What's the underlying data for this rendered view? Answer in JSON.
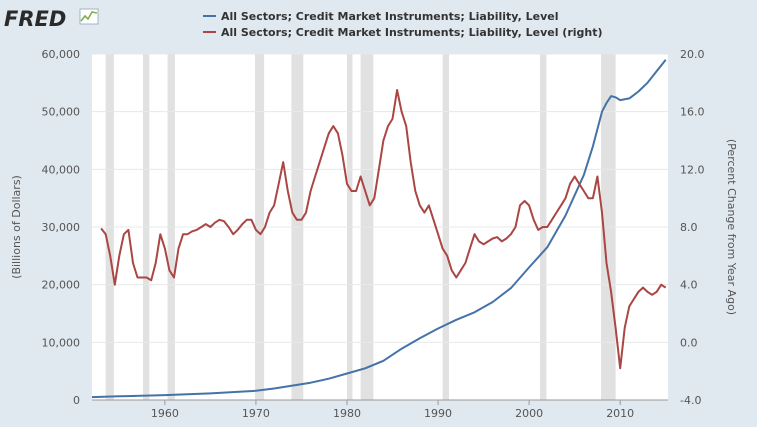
{
  "logo": {
    "text": "FRED"
  },
  "colors": {
    "background": "#e1e9f0",
    "plot_background": "#ffffff",
    "recession": "#e1e1e1",
    "grid": "#e8e8e8",
    "series_left": "#4572a7",
    "series_right": "#aa4643"
  },
  "chart_data": {
    "type": "line",
    "legend_position": "top",
    "grid": true,
    "xlim": [
      1952,
      2015.25
    ],
    "x_ticks": [
      1960,
      1970,
      1980,
      1990,
      2000,
      2010
    ],
    "x_tick_labels": [
      "1960",
      "1970",
      "1980",
      "1990",
      "2000",
      "2010"
    ],
    "y_left": {
      "label": "(Billions of Dollars)",
      "lim": [
        0,
        60000
      ],
      "ticks": [
        0,
        10000,
        20000,
        30000,
        40000,
        50000,
        60000
      ],
      "tick_labels": [
        "0",
        "10,000",
        "20,000",
        "30,000",
        "40,000",
        "50,000",
        "60,000"
      ]
    },
    "y_right": {
      "label": "(Percent Change from Year Ago)",
      "lim": [
        -4,
        20
      ],
      "ticks": [
        -4,
        0,
        4,
        8,
        12,
        16,
        20
      ],
      "tick_labels": [
        "-4.0",
        "0.0",
        "4.0",
        "8.0",
        "12.0",
        "16.0",
        "20.0"
      ]
    },
    "recessions": [
      [
        1953.5,
        1954.4
      ],
      [
        1957.6,
        1958.3
      ],
      [
        1960.3,
        1961.1
      ],
      [
        1969.9,
        1970.9
      ],
      [
        1973.9,
        1975.2
      ],
      [
        1980.0,
        1980.6
      ],
      [
        1981.5,
        1982.9
      ],
      [
        1990.5,
        1991.2
      ],
      [
        2001.2,
        2001.9
      ],
      [
        2007.9,
        2009.5
      ]
    ],
    "series": [
      {
        "name": "All Sectors; Credit Market Instruments; Liability, Level",
        "axis": "left",
        "x": [
          1952.0,
          1955.0,
          1960.0,
          1965.0,
          1970.0,
          1972.0,
          1974.0,
          1976.0,
          1978.0,
          1980.0,
          1982.0,
          1984.0,
          1986.0,
          1988.0,
          1990.0,
          1992.0,
          1994.0,
          1996.0,
          1998.0,
          2000.0,
          2002.0,
          2004.0,
          2006.0,
          2007.0,
          2008.0,
          2008.5,
          2009.0,
          2009.5,
          2010.0,
          2011.0,
          2012.0,
          2013.0,
          2014.0,
          2014.75,
          2015.0
        ],
        "values": [
          500,
          650,
          850,
          1150,
          1600,
          2000,
          2500,
          3000,
          3700,
          4600,
          5500,
          6800,
          8900,
          10700,
          12400,
          13900,
          15200,
          17000,
          19400,
          23000,
          26500,
          32000,
          39000,
          44000,
          50000,
          51500,
          52700,
          52500,
          52000,
          52300,
          53500,
          55000,
          57000,
          58500,
          59000
        ]
      },
      {
        "name": "All Sectors; Credit Market Instruments; Liability, Level (right)",
        "axis": "right",
        "x": [
          1953.0,
          1953.5,
          1954.0,
          1954.5,
          1955.0,
          1955.5,
          1956.0,
          1956.5,
          1957.0,
          1957.5,
          1958.0,
          1958.5,
          1959.0,
          1959.5,
          1960.0,
          1960.5,
          1961.0,
          1961.5,
          1962.0,
          1962.5,
          1963.0,
          1963.5,
          1964.0,
          1964.5,
          1965.0,
          1965.5,
          1966.0,
          1966.5,
          1967.0,
          1967.5,
          1968.0,
          1968.5,
          1969.0,
          1969.5,
          1970.0,
          1970.5,
          1971.0,
          1971.5,
          1972.0,
          1972.5,
          1973.0,
          1973.5,
          1974.0,
          1974.5,
          1975.0,
          1975.5,
          1976.0,
          1976.5,
          1977.0,
          1977.5,
          1978.0,
          1978.5,
          1979.0,
          1979.5,
          1980.0,
          1980.5,
          1981.0,
          1981.5,
          1982.0,
          1982.5,
          1983.0,
          1983.5,
          1984.0,
          1984.5,
          1985.0,
          1985.5,
          1986.0,
          1986.5,
          1987.0,
          1987.5,
          1988.0,
          1988.5,
          1989.0,
          1989.5,
          1990.0,
          1990.5,
          1991.0,
          1991.5,
          1992.0,
          1992.5,
          1993.0,
          1993.5,
          1994.0,
          1994.5,
          1995.0,
          1995.5,
          1996.0,
          1996.5,
          1997.0,
          1997.5,
          1998.0,
          1998.5,
          1999.0,
          1999.5,
          2000.0,
          2000.5,
          2001.0,
          2001.5,
          2002.0,
          2002.5,
          2003.0,
          2003.5,
          2004.0,
          2004.5,
          2005.0,
          2005.5,
          2006.0,
          2006.5,
          2007.0,
          2007.5,
          2008.0,
          2008.5,
          2009.0,
          2009.5,
          2010.0,
          2010.5,
          2011.0,
          2011.5,
          2012.0,
          2012.5,
          2013.0,
          2013.5,
          2014.0,
          2014.5,
          2015.0
        ],
        "values": [
          7.9,
          7.5,
          6.0,
          4.0,
          6.0,
          7.5,
          7.8,
          5.5,
          4.5,
          4.5,
          4.5,
          4.3,
          5.5,
          7.5,
          6.5,
          5.0,
          4.5,
          6.5,
          7.5,
          7.5,
          7.7,
          7.8,
          8.0,
          8.2,
          8.0,
          8.3,
          8.5,
          8.4,
          8.0,
          7.5,
          7.8,
          8.2,
          8.5,
          8.5,
          7.8,
          7.5,
          8.0,
          9.0,
          9.5,
          11.0,
          12.5,
          10.5,
          9.0,
          8.5,
          8.5,
          9.0,
          10.5,
          11.5,
          12.5,
          13.5,
          14.5,
          15.0,
          14.5,
          13.0,
          11.0,
          10.5,
          10.5,
          11.5,
          10.5,
          9.5,
          10.0,
          12.0,
          14.0,
          15.0,
          15.5,
          17.5,
          16.0,
          15.0,
          12.5,
          10.5,
          9.5,
          9.0,
          9.5,
          8.5,
          7.5,
          6.5,
          6.0,
          5.0,
          4.5,
          5.0,
          5.5,
          6.5,
          7.5,
          7.0,
          6.8,
          7.0,
          7.2,
          7.3,
          7.0,
          7.2,
          7.5,
          8.0,
          9.5,
          9.8,
          9.5,
          8.5,
          7.8,
          8.0,
          8.0,
          8.5,
          9.0,
          9.5,
          10.0,
          11.0,
          11.5,
          11.0,
          10.5,
          10.0,
          10.0,
          11.5,
          9.0,
          5.5,
          3.5,
          1.0,
          -1.8,
          1.0,
          2.5,
          3.0,
          3.5,
          3.8,
          3.5,
          3.3,
          3.5,
          4.0,
          3.8
        ]
      }
    ]
  }
}
